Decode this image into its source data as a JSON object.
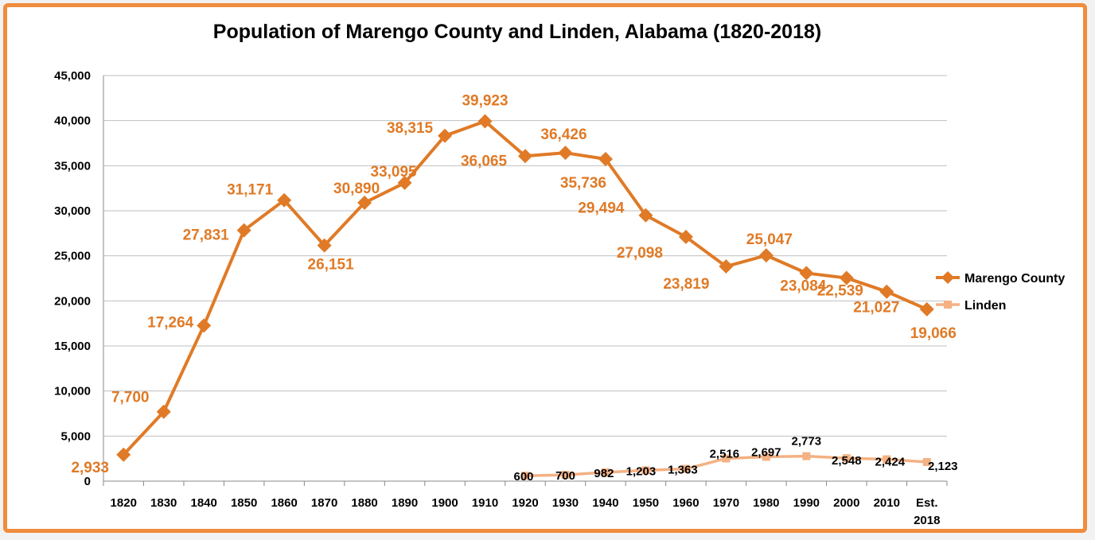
{
  "chart_data": {
    "type": "line",
    "title": "Population of Marengo County and Linden, Alabama (1820-2018)",
    "xlabel": "",
    "ylabel": "",
    "categories": [
      "1820",
      "1830",
      "1840",
      "1850",
      "1860",
      "1870",
      "1880",
      "1890",
      "1900",
      "1910",
      "1920",
      "1930",
      "1940",
      "1950",
      "1960",
      "1970",
      "1980",
      "1990",
      "2000",
      "2010",
      "Est. 2018"
    ],
    "y_ticks": [
      "0",
      "5,000",
      "10,000",
      "15,000",
      "20,000",
      "25,000",
      "30,000",
      "35,000",
      "40,000",
      "45,000"
    ],
    "ylim": [
      0,
      45000
    ],
    "grid": "horizontal",
    "legend_position": "right",
    "series": [
      {
        "name": "Marengo County",
        "color": "#e07a26",
        "marker": "diamond",
        "values": [
          2933,
          7700,
          17264,
          27831,
          31171,
          26151,
          30890,
          33095,
          38315,
          39923,
          36065,
          36426,
          35736,
          29494,
          27098,
          23819,
          25047,
          23084,
          22539,
          21027,
          19066
        ],
        "labels": [
          "2,933",
          "7,700",
          "17,264",
          "27,831",
          "31,171",
          "26,151",
          "30,890",
          "33,095",
          "38,315",
          "39,923",
          "36,065",
          "36,426",
          "35,736",
          "29,494",
          "27,098",
          "23,819",
          "25,047",
          "23,084",
          "22,539",
          "21,027",
          "19,066"
        ]
      },
      {
        "name": "Linden",
        "color": "#f4b183",
        "marker": "square",
        "values": [
          null,
          null,
          null,
          null,
          null,
          null,
          null,
          null,
          null,
          null,
          600,
          700,
          982,
          1203,
          1363,
          2516,
          2697,
          2773,
          2548,
          2424,
          2123
        ],
        "labels": [
          "",
          "",
          "",
          "",
          "",
          "",
          "",
          "",
          "",
          "",
          "600",
          "700",
          "982",
          "1,203",
          "1,363",
          "2,516",
          "2,697",
          "2,773",
          "2,548",
          "2,424",
          "2,123"
        ]
      }
    ]
  }
}
